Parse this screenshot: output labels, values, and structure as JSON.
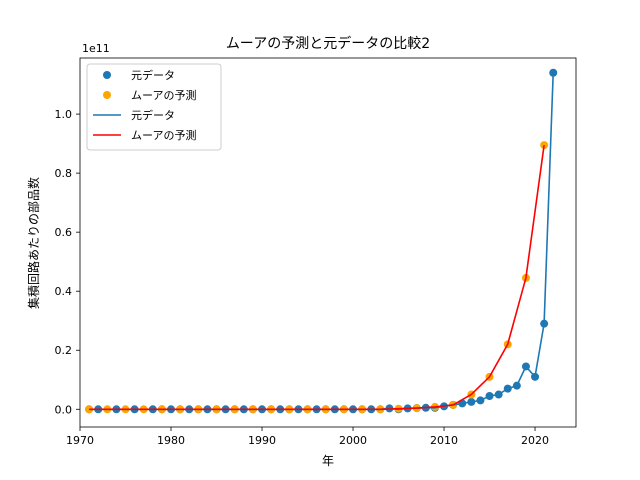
{
  "chart_data": {
    "type": "line",
    "title": "ムーアの予測と元データの比較2",
    "xlabel": "年",
    "ylabel": "集積回路あたりの部品数",
    "y_offset_label": "1e11",
    "xlim": [
      1970,
      2024.5
    ],
    "ylim": [
      -0.06,
      1.19
    ],
    "y_scale": 100000000000.0,
    "x_ticks": [
      1970,
      1980,
      1990,
      2000,
      2010,
      2020
    ],
    "x_tick_labels": [
      "1970",
      "1980",
      "1990",
      "2000",
      "2010",
      "2020"
    ],
    "y_ticks": [
      0.0,
      0.2,
      0.4,
      0.6,
      0.8,
      1.0
    ],
    "y_tick_labels": [
      "0.0",
      "0.2",
      "0.4",
      "0.6",
      "0.8",
      "1.0"
    ],
    "grid": false,
    "legend_position": "top-left",
    "legend": [
      {
        "label": "元データ",
        "kind": "marker",
        "color": "#1f77b4"
      },
      {
        "label": "ムーアの予測",
        "kind": "marker",
        "color": "#ffa500"
      },
      {
        "label": "元データ",
        "kind": "line",
        "color": "#1f77b4"
      },
      {
        "label": "ムーアの予測",
        "kind": "line",
        "color": "#ff0000"
      }
    ],
    "series": [
      {
        "name": "元データ",
        "color": "#1f77b4",
        "x": [
          1971,
          1972,
          1974,
          1976,
          1978,
          1979,
          1980,
          1981,
          1982,
          1983,
          1984,
          1985,
          1986,
          1987,
          1988,
          1989,
          1990,
          1991,
          1992,
          1993,
          1994,
          1995,
          1996,
          1997,
          1998,
          1999,
          2000,
          2001,
          2002,
          2003,
          2004,
          2005,
          2006,
          2007,
          2008,
          2009,
          2010,
          2011,
          2012,
          2013,
          2014,
          2015,
          2016,
          2017,
          2018,
          2019,
          2020,
          2021,
          2022
        ],
        "y": [
          0,
          0,
          0,
          0,
          0,
          0,
          0,
          0,
          0,
          0,
          0,
          0,
          0,
          0,
          0,
          0,
          0,
          0,
          0,
          0,
          0,
          0,
          0,
          0,
          0,
          0,
          0,
          0,
          0,
          0,
          0.003,
          0.0,
          0.003,
          0.004,
          0.005,
          0.005,
          0.01,
          0.015,
          0.02,
          0.025,
          0.03,
          0.045,
          0.05,
          0.07,
          0.08,
          0.145,
          0.11,
          0.29,
          1.14
        ]
      },
      {
        "name": "ムーアの予測",
        "color": "#ff0000",
        "marker_color": "#ffa500",
        "x": [
          1971,
          1973,
          1975,
          1977,
          1979,
          1981,
          1983,
          1985,
          1987,
          1989,
          1991,
          1993,
          1995,
          1997,
          1999,
          2001,
          2003,
          2005,
          2007,
          2009,
          2011,
          2013,
          2015,
          2017,
          2019,
          2021
        ],
        "y": [
          0,
          0,
          0,
          0,
          0,
          0,
          0,
          0,
          0,
          0,
          0,
          0,
          0,
          0,
          0,
          0,
          0,
          0.002,
          0.004,
          0.008,
          0.015,
          0.05,
          0.11,
          0.22,
          0.445,
          0.895
        ]
      }
    ]
  }
}
